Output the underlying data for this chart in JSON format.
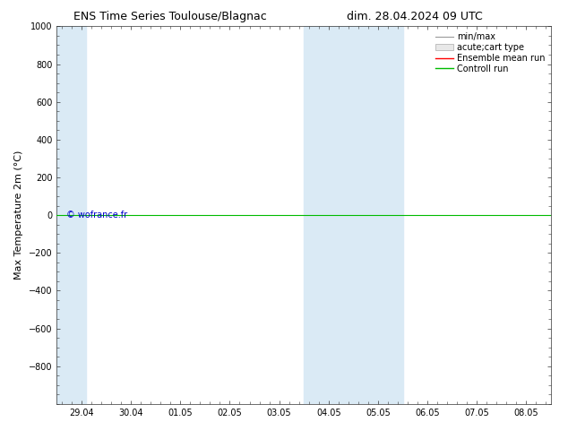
{
  "title_left": "ENS Time Series Toulouse/Blagnac",
  "title_right": "dim. 28.04.2024 09 UTC",
  "ylabel": "Max Temperature 2m (°C)",
  "yticks": [
    -800,
    -600,
    -400,
    -200,
    0,
    200,
    400,
    600,
    800,
    1000
  ],
  "ylim_top": -1000,
  "ylim_bottom": 1000,
  "xtick_labels": [
    "29.04",
    "30.04",
    "01.05",
    "02.05",
    "03.05",
    "04.05",
    "05.05",
    "06.05",
    "07.05",
    "08.05"
  ],
  "xtick_positions": [
    0,
    1,
    2,
    3,
    4,
    5,
    6,
    7,
    8,
    9
  ],
  "shaded_regions": [
    {
      "xmin": -0.5,
      "xmax": 0.1,
      "color": "#daeaf5"
    },
    {
      "xmin": 4.5,
      "xmax": 6.5,
      "color": "#daeaf5"
    }
  ],
  "green_line_y": 0,
  "green_line_color": "#00bb00",
  "copyright_text": "© wofrance.fr",
  "copyright_color": "#0000cc",
  "legend_labels": [
    "min/max",
    "acute;cart type",
    "Ensemble mean run",
    "Controll run"
  ],
  "legend_line_colors": [
    "#999999",
    "#cccccc",
    "#ff0000",
    "#00bb00"
  ],
  "bg_color": "#ffffff",
  "plot_bg_color": "#ffffff",
  "title_fontsize": 9,
  "axis_label_fontsize": 8,
  "tick_fontsize": 7,
  "legend_fontsize": 7
}
